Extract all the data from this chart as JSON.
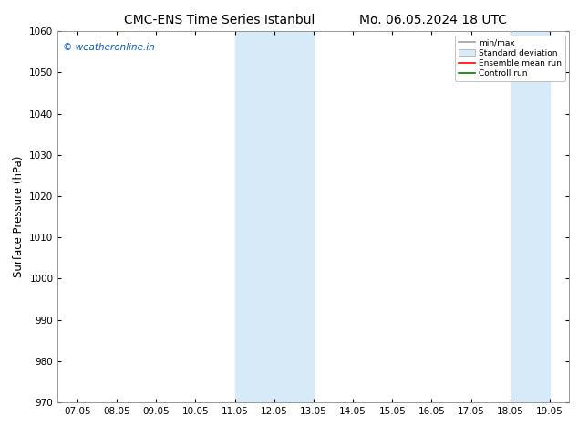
{
  "title_left": "CMC-ENS Time Series Istanbul",
  "title_right": "Mo. 06.05.2024 18 UTC",
  "ylabel": "Surface Pressure (hPa)",
  "ylim": [
    970,
    1060
  ],
  "yticks": [
    970,
    980,
    990,
    1000,
    1010,
    1020,
    1030,
    1040,
    1050,
    1060
  ],
  "xtick_labels": [
    "07.05",
    "08.05",
    "09.05",
    "10.05",
    "11.05",
    "12.05",
    "13.05",
    "14.05",
    "15.05",
    "16.05",
    "17.05",
    "18.05",
    "19.05"
  ],
  "xtick_positions": [
    0,
    1,
    2,
    3,
    4,
    5,
    6,
    7,
    8,
    9,
    10,
    11,
    12
  ],
  "shaded_bands": [
    {
      "xmin": 4,
      "xmax": 5,
      "color": "#d6ebf7",
      "alpha": 1.0
    },
    {
      "xmin": 5,
      "xmax": 6,
      "color": "#d6ebf7",
      "alpha": 1.0
    },
    {
      "xmin": 11,
      "xmax": 12,
      "color": "#d6ebf7",
      "alpha": 1.0
    }
  ],
  "legend_items": [
    {
      "label": "min/max",
      "color": "#a0a0a0",
      "type": "line"
    },
    {
      "label": "Standard deviation",
      "color": "#d6ebf7",
      "type": "box"
    },
    {
      "label": "Ensemble mean run",
      "color": "#ff0000",
      "type": "line"
    },
    {
      "label": "Controll run",
      "color": "#007700",
      "type": "line"
    }
  ],
  "watermark": "© weatheronline.in",
  "watermark_color": "#0055cc",
  "background_color": "#ffffff",
  "title_fontsize": 10,
  "tick_fontsize": 7.5,
  "ylabel_fontsize": 8.5,
  "figure_width": 6.34,
  "figure_height": 4.9,
  "dpi": 100
}
